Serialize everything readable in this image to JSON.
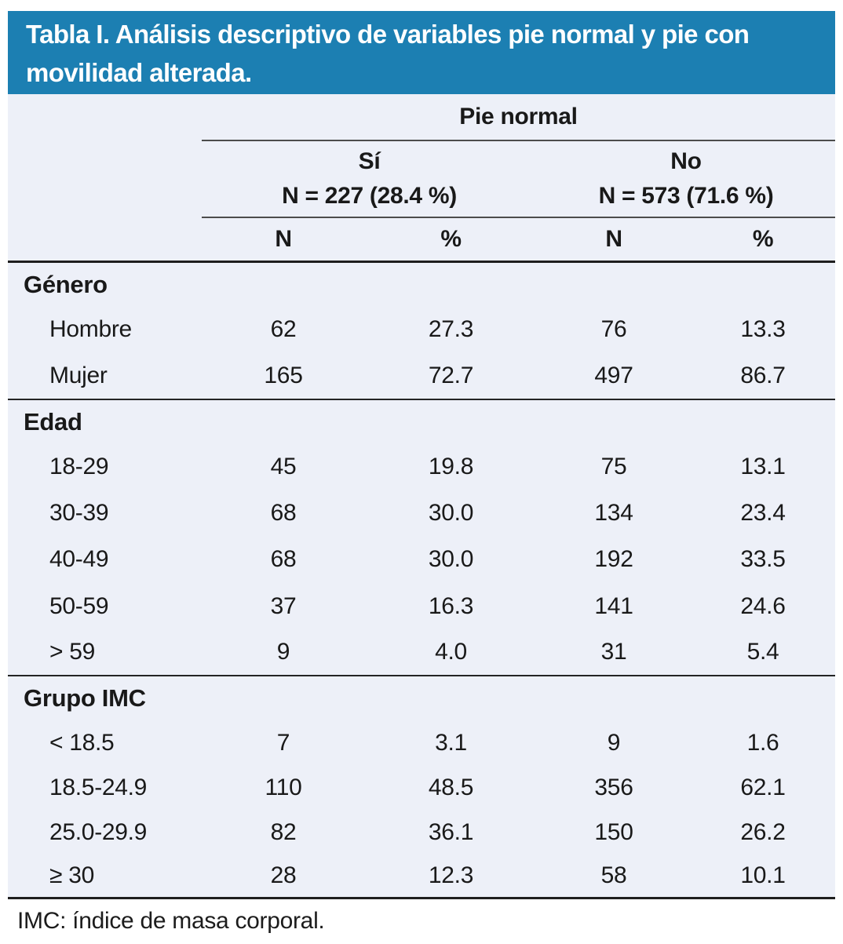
{
  "title": "Tabla I. Análisis descriptivo de variables pie normal y pie con movilidad alterada.",
  "colors": {
    "title_bar_bg": "#1c7fb2",
    "title_text": "#ffffff",
    "table_bg": "#edf0f8",
    "rule_dark": "#1e1e1e",
    "rule_gray": "#4c4c4c",
    "body_text": "#191919"
  },
  "header": {
    "group_label": "Pie normal",
    "subgroups": [
      {
        "label": "Sí",
        "n_label": "N = 227 (28.4 %)"
      },
      {
        "label": "No",
        "n_label": "N = 573 (71.6 %)"
      }
    ],
    "columns": [
      "N",
      "%",
      "N",
      "%"
    ]
  },
  "sections": [
    {
      "label": "Género",
      "rows": [
        {
          "label": "Hombre",
          "values": [
            "62",
            "27.3",
            "76",
            "13.3"
          ]
        },
        {
          "label": "Mujer",
          "values": [
            "165",
            "72.7",
            "497",
            "86.7"
          ]
        }
      ]
    },
    {
      "label": "Edad",
      "rows": [
        {
          "label": "18-29",
          "values": [
            "45",
            "19.8",
            "75",
            "13.1"
          ]
        },
        {
          "label": "30-39",
          "values": [
            "68",
            "30.0",
            "134",
            "23.4"
          ]
        },
        {
          "label": "40-49",
          "values": [
            "68",
            "30.0",
            "192",
            "33.5"
          ]
        },
        {
          "label": "50-59",
          "values": [
            "37",
            "16.3",
            "141",
            "24.6"
          ]
        },
        {
          "label": "> 59",
          "values": [
            "9",
            "4.0",
            "31",
            "5.4"
          ]
        }
      ]
    },
    {
      "label": "Grupo IMC",
      "rows": [
        {
          "label": "< 18.5",
          "values": [
            "7",
            "3.1",
            "9",
            "1.6"
          ]
        },
        {
          "label": "18.5-24.9",
          "values": [
            "110",
            "48.5",
            "356",
            "62.1"
          ]
        },
        {
          "label": "25.0-29.9",
          "values": [
            "82",
            "36.1",
            "150",
            "26.2"
          ]
        },
        {
          "label": "≥ 30",
          "values": [
            "28",
            "12.3",
            "58",
            "10.1"
          ]
        }
      ]
    }
  ],
  "footnote": "IMC: índice de masa corporal."
}
